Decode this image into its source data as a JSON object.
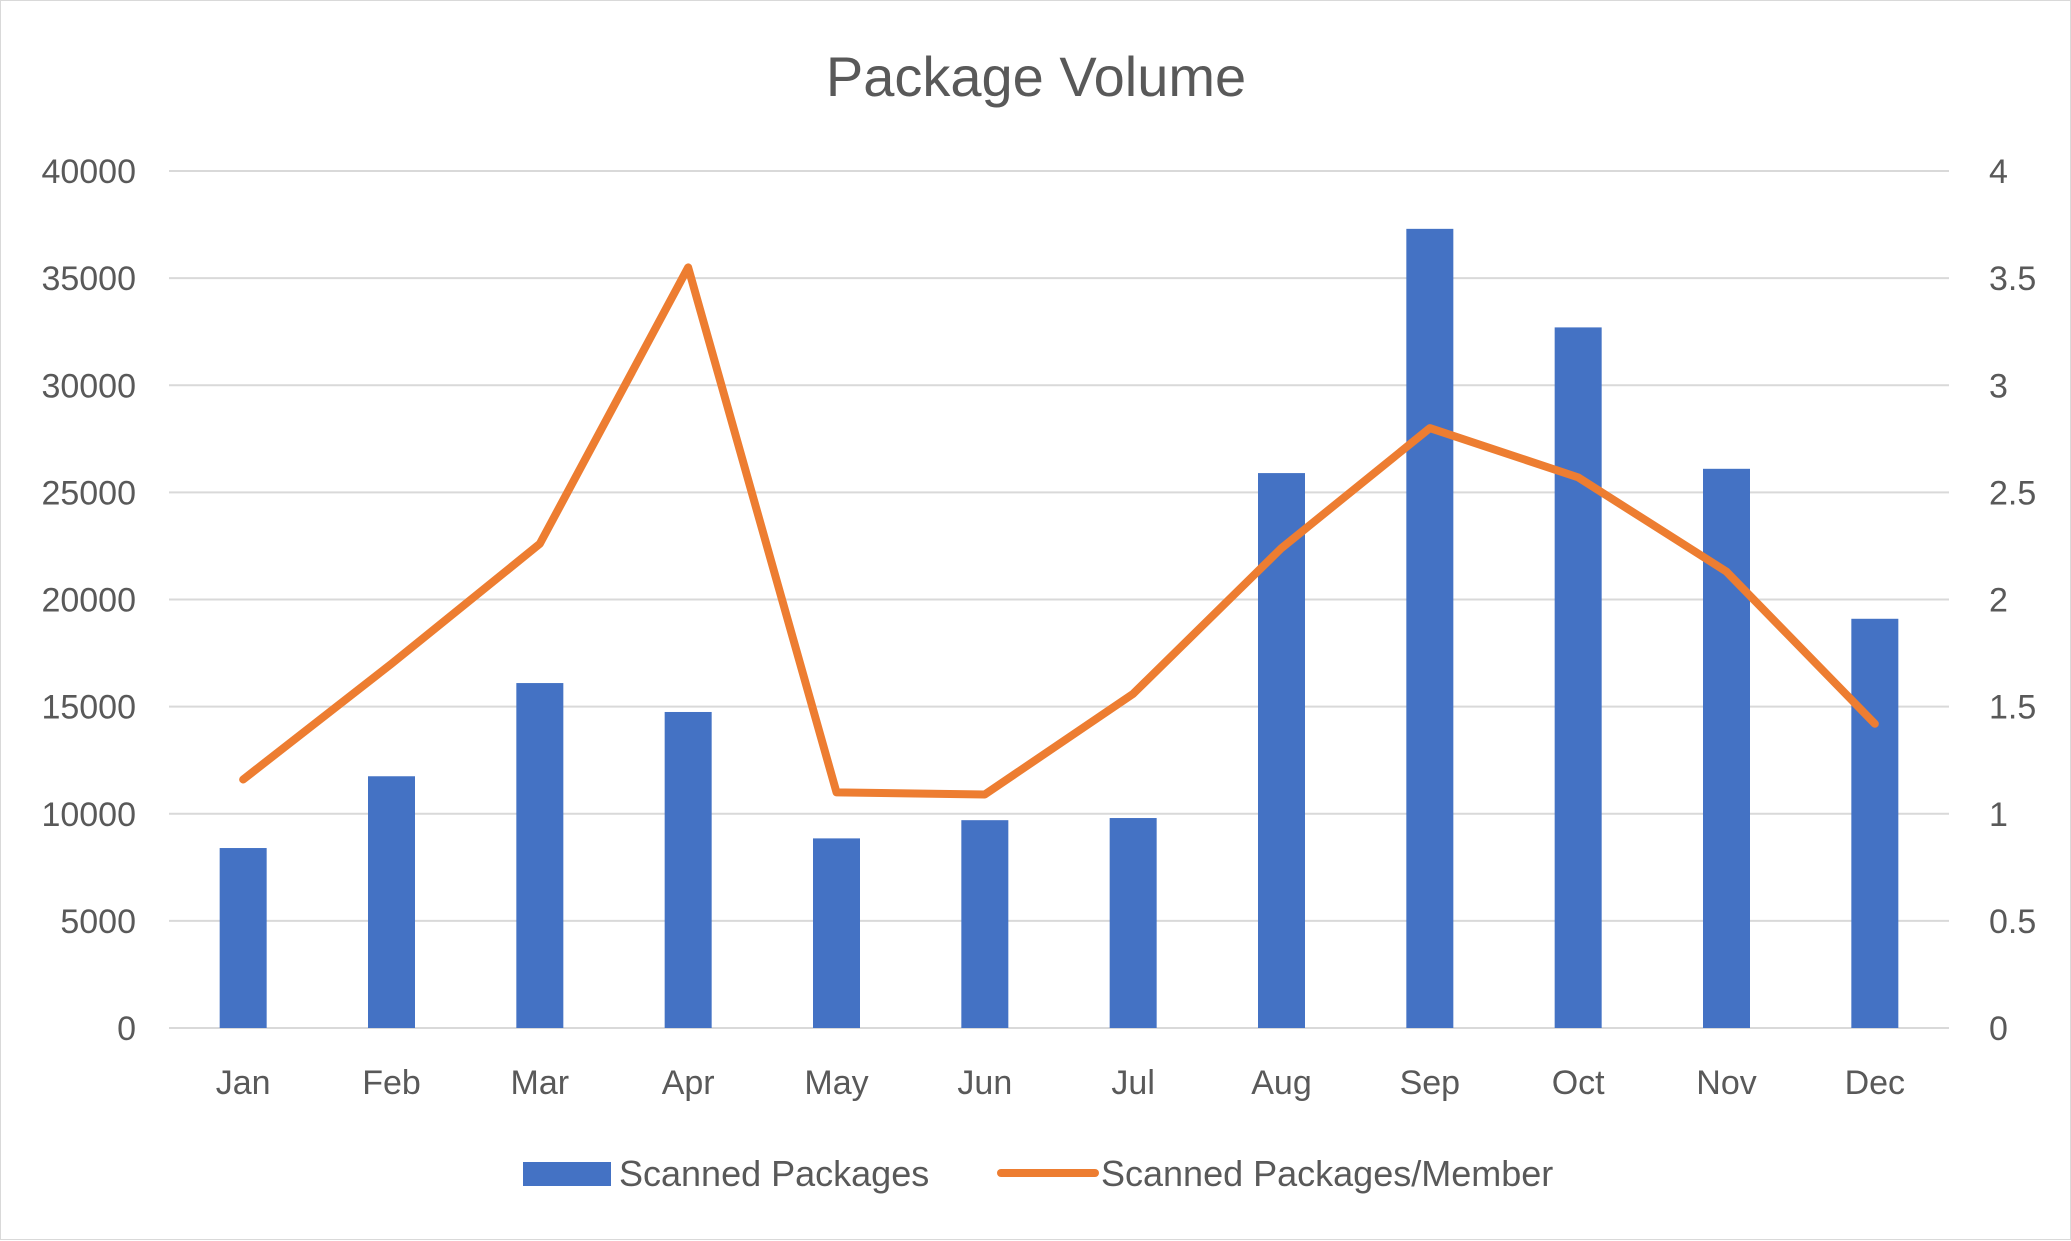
{
  "chart_data": {
    "type": "bar",
    "title": "Package Volume",
    "categories": [
      "Jan",
      "Feb",
      "Mar",
      "Apr",
      "May",
      "Jun",
      "Jul",
      "Aug",
      "Sep",
      "Oct",
      "Nov",
      "Dec"
    ],
    "series": [
      {
        "name": "Scanned Packages",
        "type": "bar",
        "axis": "left",
        "color": "#4472C4",
        "values": [
          8400,
          11750,
          16100,
          14750,
          8850,
          9700,
          9800,
          25900,
          37300,
          32700,
          26100,
          19100
        ]
      },
      {
        "name": "Scanned Packages/Member",
        "type": "line",
        "axis": "right",
        "color": "#ED7D31",
        "values": [
          1.16,
          1.7,
          2.26,
          3.55,
          1.1,
          1.09,
          1.56,
          2.24,
          2.8,
          2.57,
          2.13,
          1.42
        ]
      }
    ],
    "y_left": {
      "min": 0,
      "max": 40000,
      "ticks": [
        "0",
        "5000",
        "10000",
        "15000",
        "20000",
        "25000",
        "30000",
        "35000",
        "40000"
      ]
    },
    "y_right": {
      "min": 0,
      "max": 4,
      "ticks": [
        "0",
        "0.5",
        "1",
        "1.5",
        "2",
        "2.5",
        "3",
        "3.5",
        "4"
      ]
    },
    "grid": true,
    "legend": "bottom"
  }
}
